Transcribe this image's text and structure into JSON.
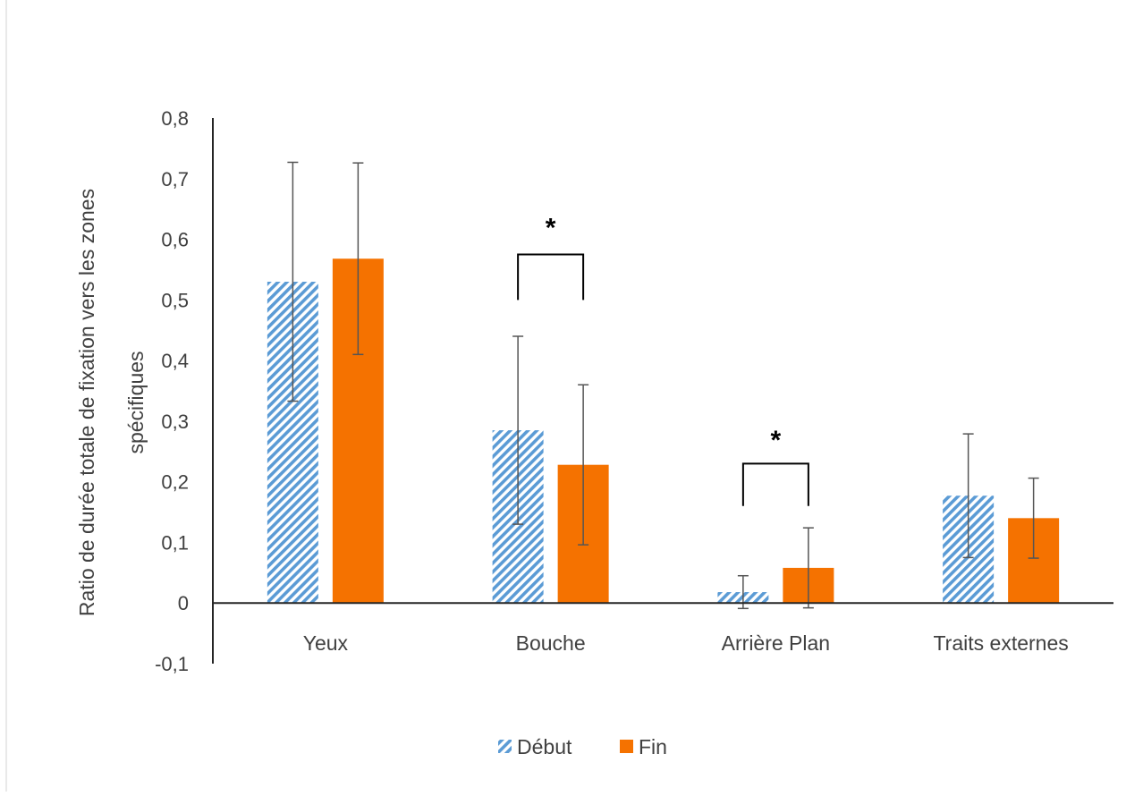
{
  "chart_data": {
    "type": "bar",
    "title": "",
    "xlabel": "",
    "ylabel_line1": "Ratio de durée totale de fixation vers les zones",
    "ylabel_line2": "spécifiques",
    "categories": [
      "Yeux",
      "Bouche",
      "Arrière Plan",
      "Traits externes"
    ],
    "series": [
      {
        "name": "Début",
        "pattern": "diagonal-hatch",
        "color": "#5b9bd5",
        "values": [
          0.53,
          0.285,
          0.018,
          0.177
        ],
        "error": [
          0.197,
          0.155,
          0.027,
          0.102
        ]
      },
      {
        "name": "Fin",
        "pattern": "solid",
        "color": "#f57200",
        "values": [
          0.568,
          0.228,
          0.058,
          0.14
        ],
        "error": [
          0.158,
          0.132,
          0.066,
          0.066
        ]
      }
    ],
    "ylim": [
      -0.1,
      0.8
    ],
    "yticks": [
      -0.1,
      0,
      0.1,
      0.2,
      0.3,
      0.4,
      0.5,
      0.6,
      0.7,
      0.8
    ],
    "ytick_labels": [
      "-0,1",
      "0",
      "0,1",
      "0,2",
      "0,3",
      "0,4",
      "0,5",
      "0,6",
      "0,7",
      "0,8"
    ],
    "grid": false,
    "legend_position": "bottom",
    "significance": [
      {
        "category": "Bouche",
        "label": "*",
        "bracket_bottom": 0.5,
        "bracket_top": 0.575,
        "star_y": 0.625
      },
      {
        "category": "Arrière Plan",
        "label": "*",
        "bracket_bottom": 0.16,
        "bracket_top": 0.23,
        "star_y": 0.275
      }
    ]
  }
}
